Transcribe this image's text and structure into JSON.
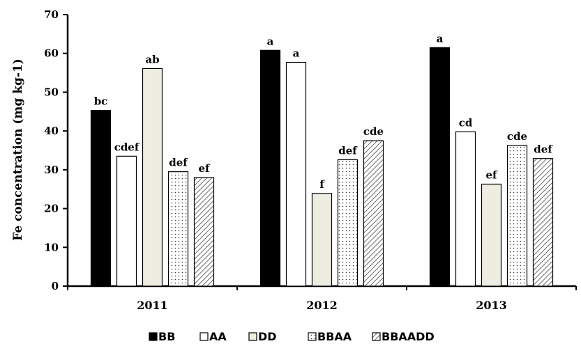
{
  "chart_data": {
    "type": "bar",
    "categories": [
      "2011",
      "2012",
      "2013"
    ],
    "ylabel": "Fe concentration (mg kg-1)",
    "ylim": [
      0,
      70
    ],
    "yticks": [
      0,
      10,
      20,
      30,
      40,
      50,
      60,
      70
    ],
    "grid": false,
    "legend_position": "bottom",
    "series": [
      {
        "name": "BB",
        "values": [
          45.3,
          60.8,
          61.5
        ],
        "labels": [
          "bc",
          "a",
          "a"
        ],
        "pattern": "solid",
        "color": "#000000"
      },
      {
        "name": "AA",
        "values": [
          33.5,
          57.7,
          39.8
        ],
        "labels": [
          "cdef",
          "a",
          "cd"
        ],
        "pattern": "empty",
        "color": "#ffffff"
      },
      {
        "name": "DD",
        "values": [
          56.1,
          23.9,
          26.3
        ],
        "labels": [
          "ab",
          "f",
          "ef"
        ],
        "pattern": "solid",
        "color": "#eeede2"
      },
      {
        "name": "BBAA",
        "values": [
          29.5,
          32.6,
          36.3
        ],
        "labels": [
          "def",
          "def",
          "cde"
        ],
        "pattern": "dots",
        "color": "#ffffff"
      },
      {
        "name": "BBAADD",
        "values": [
          28.0,
          37.5,
          32.9
        ],
        "labels": [
          "ef",
          "cde",
          "def"
        ],
        "pattern": "diagonal-hatch",
        "color": "#ffffff"
      }
    ]
  }
}
